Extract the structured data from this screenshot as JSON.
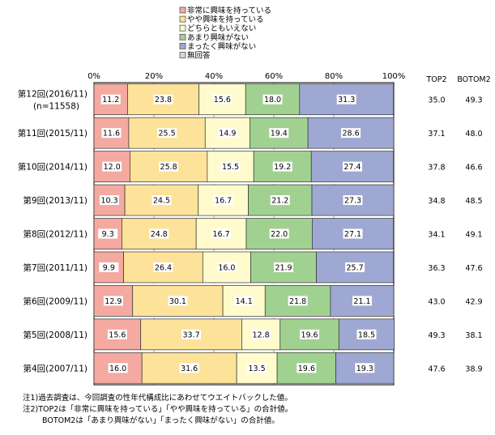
{
  "chart_data": {
    "type": "bar",
    "orientation": "horizontal",
    "stacked": true,
    "percent": true,
    "xlim": [
      0,
      100
    ],
    "x_ticks": [
      "0%",
      "20%",
      "40%",
      "60%",
      "80%",
      "100%"
    ],
    "grid": true,
    "legend_position": "top",
    "categories": [
      "第12回(2016/11)",
      "第11回(2015/11)",
      "第10回(2014/11)",
      "第9回(2013/11)",
      "第8回(2012/11)",
      "第7回(2011/11)",
      "第6回(2009/11)",
      "第5回(2008/11)",
      "第4回(2007/11)"
    ],
    "category_note": "(n=11558)",
    "series": [
      {
        "name": "非常に興味を持っている",
        "color": "#f4a9a1",
        "values": [
          11.2,
          11.6,
          12.0,
          10.3,
          9.3,
          9.9,
          12.9,
          15.6,
          16.0
        ]
      },
      {
        "name": "やや興味を持っている",
        "color": "#fde29a",
        "values": [
          23.8,
          25.5,
          25.8,
          24.5,
          24.8,
          26.4,
          30.1,
          33.7,
          31.6
        ]
      },
      {
        "name": "どちらともいえない",
        "color": "#fffbcc",
        "values": [
          15.6,
          14.9,
          15.5,
          16.7,
          16.7,
          16.0,
          14.1,
          12.8,
          13.5
        ]
      },
      {
        "name": "あまり興味がない",
        "color": "#a1d190",
        "values": [
          18.0,
          19.4,
          19.2,
          21.2,
          22.0,
          21.9,
          21.8,
          19.6,
          19.6
        ]
      },
      {
        "name": "まったく興味がない",
        "color": "#9ea8d3",
        "values": [
          31.3,
          28.6,
          27.4,
          27.3,
          27.1,
          25.7,
          21.1,
          18.5,
          19.3
        ]
      },
      {
        "name": "無回答",
        "color": "#d6d6d6",
        "values": [
          0,
          0,
          0,
          0,
          0,
          0,
          0,
          0,
          0
        ]
      }
    ],
    "summary_columns": [
      {
        "header": "TOP2",
        "values": [
          "35.0",
          "37.1",
          "37.8",
          "34.8",
          "34.1",
          "36.3",
          "43.0",
          "49.3",
          "47.6"
        ]
      },
      {
        "header": "BOTOM2",
        "values": [
          "49.3",
          "48.0",
          "46.6",
          "48.5",
          "49.1",
          "47.6",
          "42.9",
          "38.1",
          "38.9"
        ]
      }
    ]
  },
  "notes": {
    "line1": "注1)過去調査は、今回調査の性年代構成比にあわせてウエイトバックした値。",
    "line2": "注2)TOP2は「非常に興味を持っている」「やや興味を持っている」の合計値。",
    "line3": "BOTOM2は「あまり興味がない」「まったく興味がない」の合計値。"
  }
}
